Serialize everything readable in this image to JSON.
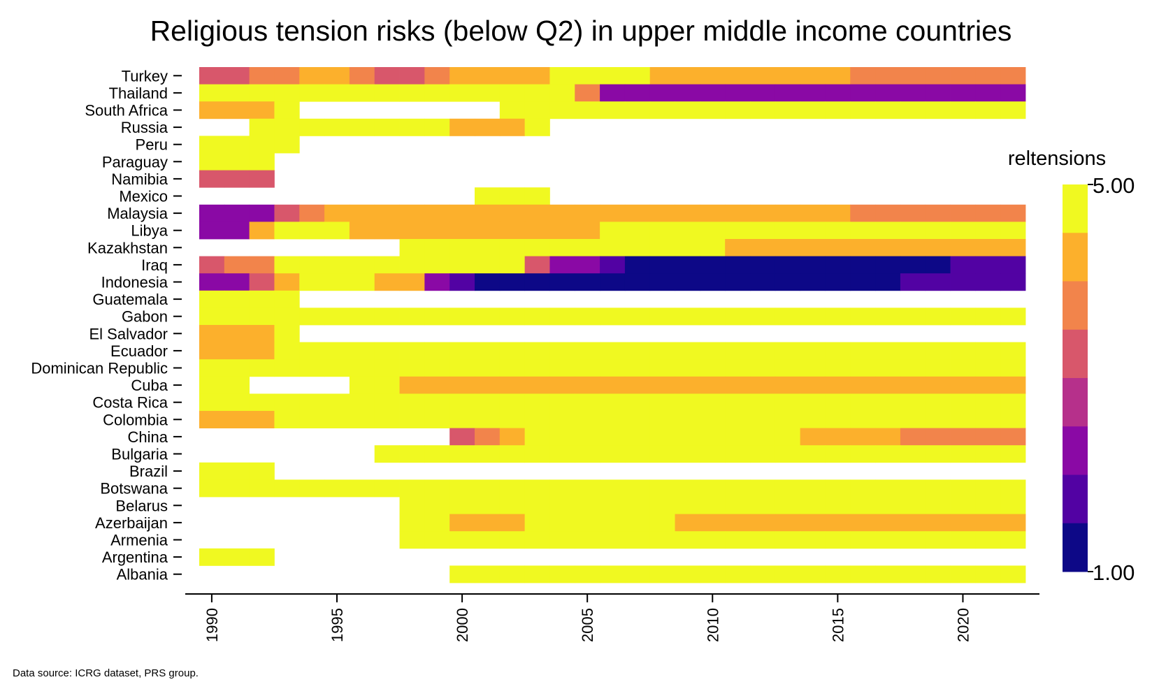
{
  "chart_data": {
    "type": "heatmap",
    "title": "Religious tension risks (below Q2) in upper middle income countries",
    "xlabel": "",
    "ylabel": "",
    "x_start": 1990,
    "x_end": 2022,
    "xticks": [
      "1990",
      "1995",
      "2000",
      "2005",
      "2010",
      "2015",
      "2020"
    ],
    "countries": [
      "Turkey",
      "Thailand",
      "South Africa",
      "Russia",
      "Peru",
      "Paraguay",
      "Namibia",
      "Mexico",
      "Malaysia",
      "Libya",
      "Kazakhstan",
      "Iraq",
      "Indonesia",
      "Guatemala",
      "Gabon",
      "El Salvador",
      "Ecuador",
      "Dominican Republic",
      "Cuba",
      "Costa Rica",
      "Colombia",
      "China",
      "Bulgaria",
      "Brazil",
      "Botswana",
      "Belarus",
      "Azerbaijan",
      "Armenia",
      "Argentina",
      "Albania"
    ],
    "values": {
      "Turkey": [
        3.0,
        3.0,
        3.5,
        3.5,
        4.0,
        4.0,
        3.5,
        3.0,
        3.0,
        3.5,
        4.0,
        4.0,
        4.0,
        4.0,
        5.0,
        5.0,
        5.0,
        5.0,
        4.0,
        4.0,
        4.0,
        4.0,
        4.0,
        4.0,
        4.0,
        4.0,
        3.5,
        3.5,
        3.5,
        3.5,
        3.5,
        3.5,
        3.5
      ],
      "Thailand": [
        5.0,
        5.0,
        5.0,
        5.0,
        5.0,
        5.0,
        5.0,
        5.0,
        5.0,
        5.0,
        5.0,
        5.0,
        5.0,
        5.0,
        5.0,
        3.5,
        2.0,
        2.0,
        2.0,
        2.0,
        2.0,
        2.0,
        2.0,
        2.0,
        2.0,
        2.0,
        2.0,
        2.0,
        2.0,
        2.0,
        2.0,
        2.0,
        2.0
      ],
      "South Africa": [
        4.0,
        4.0,
        4.0,
        5.0,
        null,
        null,
        null,
        null,
        null,
        null,
        null,
        null,
        5.0,
        5.0,
        5.0,
        5.0,
        5.0,
        5.0,
        5.0,
        5.0,
        5.0,
        5.0,
        5.0,
        5.0,
        5.0,
        5.0,
        5.0,
        5.0,
        5.0,
        5.0,
        5.0,
        5.0,
        5.0
      ],
      "Russia": [
        null,
        null,
        5.0,
        5.0,
        5.0,
        5.0,
        5.0,
        5.0,
        5.0,
        5.0,
        4.0,
        4.0,
        4.0,
        5.0,
        null,
        null,
        null,
        null,
        null,
        null,
        null,
        null,
        null,
        null,
        null,
        null,
        null,
        null,
        null,
        null,
        null,
        null,
        null
      ],
      "Peru": [
        5.0,
        5.0,
        5.0,
        5.0,
        null,
        null,
        null,
        null,
        null,
        null,
        null,
        null,
        null,
        null,
        null,
        null,
        null,
        null,
        null,
        null,
        null,
        null,
        null,
        null,
        null,
        null,
        null,
        null,
        null,
        null,
        null,
        null,
        null
      ],
      "Paraguay": [
        5.0,
        5.0,
        5.0,
        null,
        null,
        null,
        null,
        null,
        null,
        null,
        null,
        null,
        null,
        null,
        null,
        null,
        null,
        null,
        null,
        null,
        null,
        null,
        null,
        null,
        null,
        null,
        null,
        null,
        null,
        null,
        null,
        null,
        null
      ],
      "Namibia": [
        3.0,
        3.0,
        3.0,
        null,
        null,
        null,
        null,
        null,
        null,
        null,
        null,
        null,
        null,
        null,
        null,
        null,
        null,
        null,
        null,
        null,
        null,
        null,
        null,
        null,
        null,
        null,
        null,
        null,
        null,
        null,
        null,
        null,
        null
      ],
      "Mexico": [
        null,
        null,
        null,
        null,
        null,
        null,
        null,
        null,
        null,
        null,
        null,
        5.0,
        5.0,
        5.0,
        null,
        null,
        null,
        null,
        null,
        null,
        null,
        null,
        null,
        null,
        null,
        null,
        null,
        null,
        null,
        null,
        null,
        null,
        null
      ],
      "Malaysia": [
        2.0,
        2.0,
        2.0,
        3.0,
        3.5,
        4.0,
        4.0,
        4.0,
        4.0,
        4.0,
        4.0,
        4.0,
        4.0,
        4.0,
        4.0,
        4.0,
        4.0,
        4.0,
        4.0,
        4.0,
        4.0,
        4.0,
        4.0,
        4.0,
        4.0,
        4.0,
        3.5,
        3.5,
        3.5,
        3.5,
        3.5,
        3.5,
        3.5
      ],
      "Libya": [
        2.0,
        2.0,
        4.0,
        5.0,
        5.0,
        5.0,
        4.0,
        4.0,
        4.0,
        4.0,
        4.0,
        4.0,
        4.0,
        4.0,
        4.0,
        4.0,
        5.0,
        5.0,
        5.0,
        5.0,
        5.0,
        5.0,
        5.0,
        5.0,
        5.0,
        5.0,
        5.0,
        5.0,
        5.0,
        5.0,
        5.0,
        5.0,
        5.0
      ],
      "Kazakhstan": [
        null,
        null,
        null,
        null,
        null,
        null,
        null,
        null,
        5.0,
        5.0,
        5.0,
        5.0,
        5.0,
        5.0,
        5.0,
        5.0,
        5.0,
        5.0,
        5.0,
        5.0,
        5.0,
        4.0,
        4.0,
        4.0,
        4.0,
        4.0,
        4.0,
        4.0,
        4.0,
        4.0,
        4.0,
        4.0,
        4.0
      ],
      "Iraq": [
        3.0,
        3.5,
        3.5,
        5.0,
        5.0,
        5.0,
        5.0,
        5.0,
        5.0,
        5.0,
        5.0,
        5.0,
        5.0,
        3.0,
        2.0,
        2.0,
        1.5,
        1.0,
        1.0,
        1.0,
        1.0,
        1.0,
        1.0,
        1.0,
        1.0,
        1.0,
        1.0,
        1.0,
        1.0,
        1.0,
        1.5,
        1.5,
        1.5
      ],
      "Indonesia": [
        2.0,
        2.0,
        3.0,
        4.0,
        5.0,
        5.0,
        5.0,
        4.0,
        4.0,
        2.0,
        1.5,
        1.0,
        1.0,
        1.0,
        1.0,
        1.0,
        1.0,
        1.0,
        1.0,
        1.0,
        1.0,
        1.0,
        1.0,
        1.0,
        1.0,
        1.0,
        1.0,
        1.0,
        1.5,
        1.5,
        1.5,
        1.5,
        1.5
      ],
      "Guatemala": [
        5.0,
        5.0,
        5.0,
        5.0,
        null,
        null,
        null,
        null,
        null,
        null,
        null,
        null,
        null,
        null,
        null,
        null,
        null,
        null,
        null,
        null,
        null,
        null,
        null,
        null,
        null,
        null,
        null,
        null,
        null,
        null,
        null,
        null,
        null
      ],
      "Gabon": [
        5.0,
        5.0,
        5.0,
        5.0,
        5.0,
        5.0,
        5.0,
        5.0,
        5.0,
        5.0,
        5.0,
        5.0,
        5.0,
        5.0,
        5.0,
        5.0,
        5.0,
        5.0,
        5.0,
        5.0,
        5.0,
        5.0,
        5.0,
        5.0,
        5.0,
        5.0,
        5.0,
        5.0,
        5.0,
        5.0,
        5.0,
        5.0,
        5.0
      ],
      "El Salvador": [
        4.0,
        4.0,
        4.0,
        5.0,
        null,
        null,
        null,
        null,
        null,
        null,
        null,
        null,
        null,
        null,
        null,
        null,
        null,
        null,
        null,
        null,
        null,
        null,
        null,
        null,
        null,
        null,
        null,
        null,
        null,
        null,
        null,
        null,
        null
      ],
      "Ecuador": [
        4.0,
        4.0,
        4.0,
        5.0,
        5.0,
        5.0,
        5.0,
        5.0,
        5.0,
        5.0,
        5.0,
        5.0,
        5.0,
        5.0,
        5.0,
        5.0,
        5.0,
        5.0,
        5.0,
        5.0,
        5.0,
        5.0,
        5.0,
        5.0,
        5.0,
        5.0,
        5.0,
        5.0,
        5.0,
        5.0,
        5.0,
        5.0,
        5.0
      ],
      "Dominican Republic": [
        5.0,
        5.0,
        5.0,
        5.0,
        5.0,
        5.0,
        5.0,
        5.0,
        5.0,
        5.0,
        5.0,
        5.0,
        5.0,
        5.0,
        5.0,
        5.0,
        5.0,
        5.0,
        5.0,
        5.0,
        5.0,
        5.0,
        5.0,
        5.0,
        5.0,
        5.0,
        5.0,
        5.0,
        5.0,
        5.0,
        5.0,
        5.0,
        5.0
      ],
      "Cuba": [
        5.0,
        5.0,
        null,
        null,
        null,
        null,
        5.0,
        5.0,
        4.0,
        4.0,
        4.0,
        4.0,
        4.0,
        4.0,
        4.0,
        4.0,
        4.0,
        4.0,
        4.0,
        4.0,
        4.0,
        4.0,
        4.0,
        4.0,
        4.0,
        4.0,
        4.0,
        4.0,
        4.0,
        4.0,
        4.0,
        4.0,
        4.0
      ],
      "Costa Rica": [
        5.0,
        5.0,
        5.0,
        5.0,
        5.0,
        5.0,
        5.0,
        5.0,
        5.0,
        5.0,
        5.0,
        5.0,
        5.0,
        5.0,
        5.0,
        5.0,
        5.0,
        5.0,
        5.0,
        5.0,
        5.0,
        5.0,
        5.0,
        5.0,
        5.0,
        5.0,
        5.0,
        5.0,
        5.0,
        5.0,
        5.0,
        5.0,
        5.0
      ],
      "Colombia": [
        4.0,
        4.0,
        4.0,
        5.0,
        5.0,
        5.0,
        5.0,
        5.0,
        5.0,
        5.0,
        5.0,
        5.0,
        5.0,
        5.0,
        5.0,
        5.0,
        5.0,
        5.0,
        5.0,
        5.0,
        5.0,
        5.0,
        5.0,
        5.0,
        5.0,
        5.0,
        5.0,
        5.0,
        5.0,
        5.0,
        5.0,
        5.0,
        5.0
      ],
      "China": [
        null,
        null,
        null,
        null,
        null,
        null,
        null,
        null,
        null,
        null,
        3.0,
        3.5,
        4.0,
        5.0,
        5.0,
        5.0,
        5.0,
        5.0,
        5.0,
        5.0,
        5.0,
        5.0,
        5.0,
        5.0,
        4.0,
        4.0,
        4.0,
        4.0,
        3.5,
        3.5,
        3.5,
        3.5,
        3.5
      ],
      "Bulgaria": [
        null,
        null,
        null,
        null,
        null,
        null,
        null,
        5.0,
        5.0,
        5.0,
        5.0,
        5.0,
        5.0,
        5.0,
        5.0,
        5.0,
        5.0,
        5.0,
        5.0,
        5.0,
        5.0,
        5.0,
        5.0,
        5.0,
        5.0,
        5.0,
        5.0,
        5.0,
        5.0,
        5.0,
        5.0,
        5.0,
        5.0
      ],
      "Brazil": [
        5.0,
        5.0,
        5.0,
        null,
        null,
        null,
        null,
        null,
        null,
        null,
        null,
        null,
        null,
        null,
        null,
        null,
        null,
        null,
        null,
        null,
        null,
        null,
        null,
        null,
        null,
        null,
        null,
        null,
        null,
        null,
        null,
        null,
        null
      ],
      "Botswana": [
        5.0,
        5.0,
        5.0,
        5.0,
        5.0,
        5.0,
        5.0,
        5.0,
        5.0,
        5.0,
        5.0,
        5.0,
        5.0,
        5.0,
        5.0,
        5.0,
        5.0,
        5.0,
        5.0,
        5.0,
        5.0,
        5.0,
        5.0,
        5.0,
        5.0,
        5.0,
        5.0,
        5.0,
        5.0,
        5.0,
        5.0,
        5.0,
        5.0
      ],
      "Belarus": [
        null,
        null,
        null,
        null,
        null,
        null,
        null,
        null,
        5.0,
        5.0,
        5.0,
        5.0,
        5.0,
        5.0,
        5.0,
        5.0,
        5.0,
        5.0,
        5.0,
        5.0,
        5.0,
        5.0,
        5.0,
        5.0,
        5.0,
        5.0,
        5.0,
        5.0,
        5.0,
        5.0,
        5.0,
        5.0,
        5.0
      ],
      "Azerbaijan": [
        null,
        null,
        null,
        null,
        null,
        null,
        null,
        null,
        5.0,
        5.0,
        4.0,
        4.0,
        4.0,
        5.0,
        5.0,
        5.0,
        5.0,
        5.0,
        5.0,
        4.0,
        4.0,
        4.0,
        4.0,
        4.0,
        4.0,
        4.0,
        4.0,
        4.0,
        4.0,
        4.0,
        4.0,
        4.0,
        4.0
      ],
      "Armenia": [
        null,
        null,
        null,
        null,
        null,
        null,
        null,
        null,
        5.0,
        5.0,
        5.0,
        5.0,
        5.0,
        5.0,
        5.0,
        5.0,
        5.0,
        5.0,
        5.0,
        5.0,
        5.0,
        5.0,
        5.0,
        5.0,
        5.0,
        5.0,
        5.0,
        5.0,
        5.0,
        5.0,
        5.0,
        5.0,
        5.0
      ],
      "Argentina": [
        5.0,
        5.0,
        5.0,
        null,
        null,
        null,
        null,
        null,
        null,
        null,
        null,
        null,
        null,
        null,
        null,
        null,
        null,
        null,
        null,
        null,
        null,
        null,
        null,
        null,
        null,
        null,
        null,
        null,
        null,
        null,
        null,
        null,
        null
      ],
      "Albania": [
        null,
        null,
        null,
        null,
        null,
        null,
        null,
        null,
        null,
        null,
        5.0,
        5.0,
        5.0,
        5.0,
        5.0,
        5.0,
        5.0,
        5.0,
        5.0,
        5.0,
        5.0,
        5.0,
        5.0,
        5.0,
        5.0,
        5.0,
        5.0,
        5.0,
        5.0,
        5.0,
        5.0,
        5.0,
        5.0
      ]
    },
    "legend": {
      "title": "reltensions",
      "min_label": "1.00",
      "max_label": "5.00",
      "min": 1.0,
      "max": 5.0,
      "colors": [
        "#0d0887",
        "#5202a3",
        "#8a09a5",
        "#b6308b",
        "#d8576b",
        "#f2844b",
        "#fcb02c",
        "#f0f921"
      ]
    },
    "grid": false,
    "legend_position": "right"
  },
  "footer": {
    "source": "Data source: ICRG dataset, PRS group."
  }
}
